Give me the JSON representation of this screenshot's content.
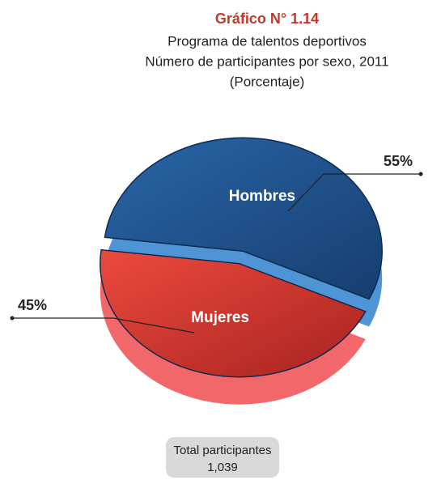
{
  "chart_data": {
    "type": "pie",
    "title": "Gráfico N° 1.14",
    "subtitle": [
      "Programa de talentos deportivos",
      "Número de participantes por sexo, 2011",
      "(Porcentaje)"
    ],
    "categories": [
      "Hombres",
      "Mujeres"
    ],
    "values": [
      55,
      45
    ],
    "value_labels": [
      "55%",
      "45%"
    ],
    "colors": [
      "#1f4f8a",
      "#e0423a"
    ],
    "side_colors": [
      "#4f94d4",
      "#f2676a"
    ],
    "annotations": [
      "Total participantes",
      "1,039"
    ]
  }
}
